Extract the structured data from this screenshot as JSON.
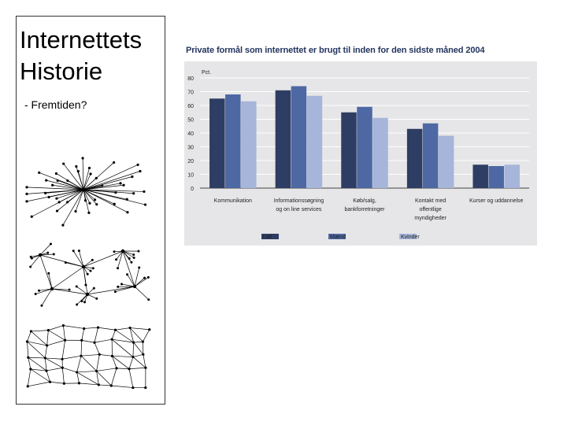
{
  "slide": {
    "title_line1": "Internettets",
    "title_line2": "Historie",
    "subtitle": "- Fremtiden?"
  },
  "icons": [
    "centralized-network-diagram",
    "decentralized-network-diagram",
    "distributed-network-diagram"
  ],
  "colors": {
    "ialt": "#2e3d63",
    "maend": "#4d68a3",
    "kvinder": "#a6b5d9",
    "title": "#23345f",
    "plot_bg": "#e6e6e8"
  },
  "chart_data": {
    "type": "bar",
    "title": "Private formål som internettet er brugt til inden for den sidste måned 2004",
    "ylabel": "Pct.",
    "ylim": [
      0,
      80
    ],
    "yticks": [
      0,
      10,
      20,
      30,
      40,
      50,
      60,
      70,
      80
    ],
    "categories": [
      [
        "Kommunikation"
      ],
      [
        "Informationssøgning",
        "og on line services"
      ],
      [
        "Køb/salg,",
        "bankforretninger"
      ],
      [
        "Kontakt med",
        "offentlige",
        "myndigheder"
      ],
      [
        "Kurser og uddannelse"
      ]
    ],
    "series": [
      {
        "name": "I alt",
        "values": [
          65,
          71,
          55,
          43,
          17
        ]
      },
      {
        "name": "Mænd",
        "values": [
          68,
          74,
          59,
          47,
          16
        ]
      },
      {
        "name": "Kvinder",
        "values": [
          63,
          67,
          51,
          38,
          17
        ]
      }
    ],
    "grid": true,
    "legend_position": "bottom"
  }
}
